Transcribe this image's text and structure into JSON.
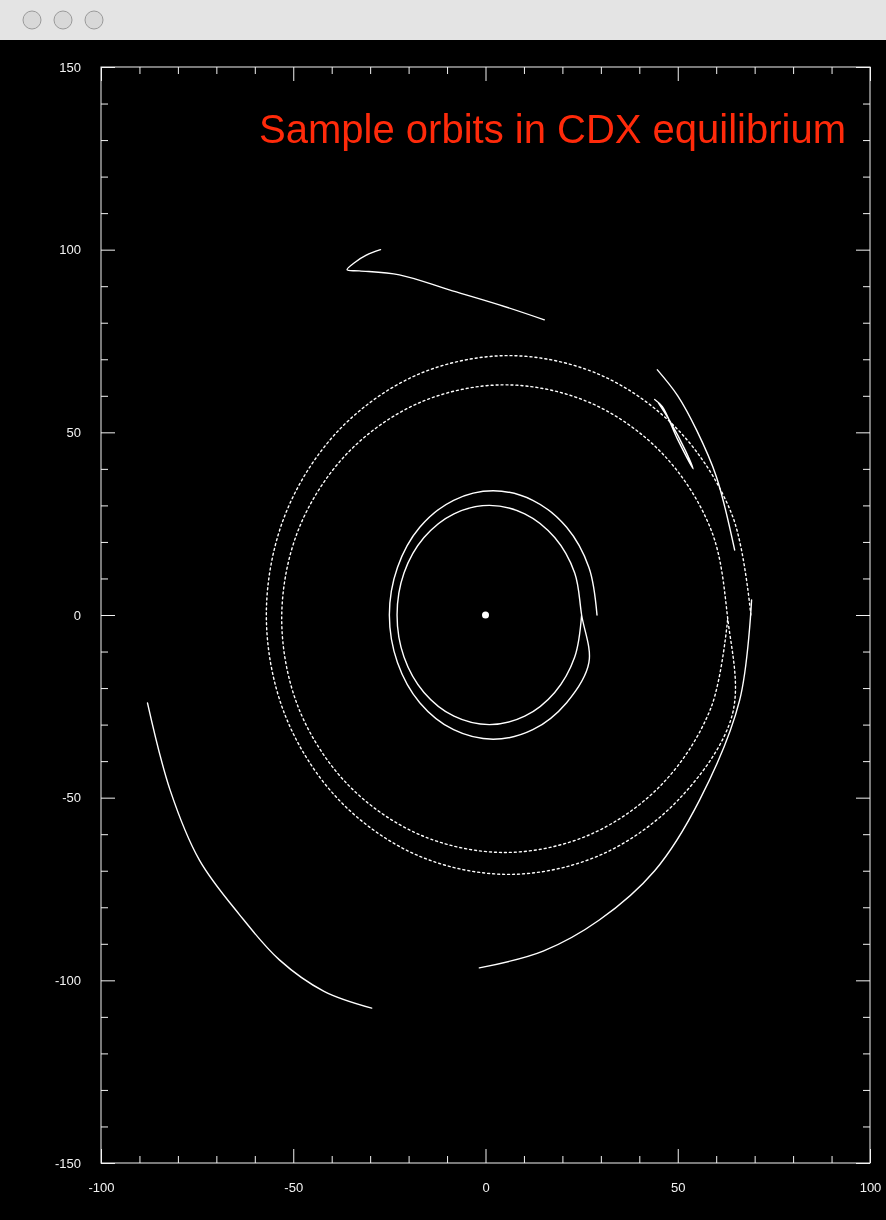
{
  "chart_data": {
    "type": "line",
    "title": "Sample orbits in CDX equilibrium",
    "xlim": [
      -100,
      100
    ],
    "ylim": [
      -150,
      150
    ],
    "xticks": [
      -100,
      {
        "value": -90,
        "label": null
      },
      {
        "value": -80,
        "label": null
      },
      {
        "value": -70,
        "label": null
      },
      {
        "value": -60,
        "label": null
      },
      -50,
      {
        "value": -40,
        "label": null
      },
      {
        "value": -30,
        "label": null
      },
      {
        "value": -20,
        "label": null
      },
      {
        "value": -10,
        "label": null
      },
      0,
      {
        "value": 10,
        "label": null
      },
      {
        "value": 20,
        "label": null
      },
      {
        "value": 30,
        "label": null
      },
      {
        "value": 40,
        "label": null
      },
      50,
      {
        "value": 60,
        "label": null
      },
      {
        "value": 70,
        "label": null
      },
      {
        "value": 80,
        "label": null
      },
      {
        "value": 90,
        "label": null
      },
      100
    ],
    "yticks": [
      -150,
      {
        "value": -140,
        "label": null
      },
      {
        "value": -130,
        "label": null
      },
      {
        "value": -120,
        "label": null
      },
      {
        "value": -110,
        "label": null
      },
      -100,
      {
        "value": -90,
        "label": null
      },
      {
        "value": -80,
        "label": null
      },
      {
        "value": -70,
        "label": null
      },
      {
        "value": -60,
        "label": null
      },
      -50,
      {
        "value": -40,
        "label": null
      },
      {
        "value": -30,
        "label": null
      },
      {
        "value": -20,
        "label": null
      },
      {
        "value": -10,
        "label": null
      },
      0,
      {
        "value": 10,
        "label": null
      },
      {
        "value": 20,
        "label": null
      },
      {
        "value": 30,
        "label": null
      },
      {
        "value": 40,
        "label": null
      },
      50,
      {
        "value": 60,
        "label": null
      },
      {
        "value": 70,
        "label": null
      },
      {
        "value": 80,
        "label": null
      },
      {
        "value": 90,
        "label": null
      },
      100,
      {
        "value": 110,
        "label": null
      },
      {
        "value": 120,
        "label": null
      },
      {
        "value": 130,
        "label": null
      },
      {
        "value": 140,
        "label": null
      },
      150
    ],
    "grid": false,
    "series": [
      {
        "color": "#ffffff",
        "line_style": "solid",
        "x": [
          -27.3,
          -31,
          -34,
          -36,
          -32.8,
          -22.4,
          -9.4,
          3.6,
          15.3
        ],
        "values": [
          100,
          98.5,
          96.5,
          94.5,
          94.2,
          93.1,
          89,
          84.9,
          80.8
        ]
      },
      {
        "color": "#ffffff",
        "line_style": "solid",
        "x": [
          44.7,
          50,
          54.9,
          60,
          64.8
        ],
        "values": [
          67.1,
          60,
          50.6,
          38,
          17.8
        ]
      },
      {
        "color": "#ffffff",
        "line_style": "solid",
        "x": [
          44,
          46,
          50,
          54,
          52,
          48,
          45
        ],
        "values": [
          59,
          57,
          48,
          40,
          45,
          53,
          58
        ]
      },
      {
        "color": "#ffffff",
        "line_style": "solid",
        "x": [
          -87.9,
          -82,
          -74.4,
          -64,
          -53.6,
          -42,
          -29.6
        ],
        "values": [
          -24.1,
          -48,
          -67.1,
          -82,
          -94.4,
          -103,
          -107.6
        ]
      },
      {
        "color": "#ffffff",
        "line_style": "solid",
        "x": [
          -1.6,
          15,
          29.6,
          44,
          55.7,
          66.1,
          69.2
        ],
        "values": [
          -96.6,
          -92,
          -83.5,
          -70,
          -50.6,
          -23.3,
          4.1
        ]
      },
      {
        "color": "#ffffff",
        "line_style": "dotted",
        "x": [
          69,
          64.2,
          50.5,
          30.1,
          6,
          -18.1,
          -38.5,
          -52.2,
          -57,
          -52.2,
          -38.5,
          -18.1,
          6,
          30.1,
          50.5,
          64.2,
          63,
          58.6,
          46,
          27.2,
          5,
          -17.2,
          -36,
          -48.6,
          -53,
          -48.6,
          -36,
          -17.2,
          5,
          27.2,
          46,
          58.6,
          63
        ],
        "values": [
          0,
          27.2,
          50.2,
          65.6,
          71,
          65.6,
          50.2,
          27.2,
          0,
          -27.2,
          -50.2,
          -65.6,
          -71,
          -65.6,
          -50.2,
          -27.2,
          -1,
          23.5,
          44.2,
          58.1,
          63,
          58.1,
          44.2,
          23.5,
          -1,
          -25.5,
          -46.2,
          -60.1,
          -65,
          -60.1,
          -46.2,
          -25.5,
          -1
        ]
      },
      {
        "color": "#ffffff",
        "line_style": "solid",
        "x": [
          29,
          26.9,
          21.1,
          12.3,
          2,
          -8.3,
          -17.1,
          -22.9,
          -25,
          -22.9,
          -17.1,
          -8.3,
          2,
          12.3,
          21.1,
          26.9,
          25,
          23.2,
          18,
          10.2,
          1,
          -8.2,
          -16,
          -21.2,
          -23,
          -21.2,
          -16,
          -8.2,
          1,
          10.2,
          18,
          23.2,
          25
        ],
        "values": [
          0,
          13,
          24,
          31.4,
          34,
          31.4,
          24,
          13,
          0,
          -13,
          -24,
          -31.4,
          -34,
          -31.4,
          -24,
          -13,
          0,
          11.5,
          21.2,
          27.7,
          30,
          27.7,
          21.2,
          11.5,
          0,
          -11.5,
          -21.2,
          -27.7,
          -30,
          -27.7,
          -21.2,
          -11.5,
          0
        ]
      },
      {
        "type": "scatter",
        "color": "#ffffff",
        "marker": "circle",
        "x": [
          0
        ],
        "values": [
          0
        ]
      }
    ]
  }
}
